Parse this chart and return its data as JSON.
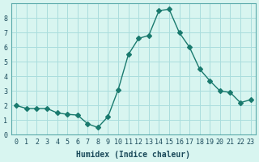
{
  "x": [
    0,
    1,
    2,
    3,
    4,
    5,
    6,
    7,
    8,
    9,
    10,
    11,
    12,
    13,
    14,
    15,
    16,
    17,
    18,
    19,
    20,
    21,
    22,
    23
  ],
  "y": [
    2.0,
    1.8,
    1.8,
    1.8,
    1.5,
    1.4,
    1.35,
    0.75,
    0.5,
    1.25,
    3.1,
    5.5,
    6.6,
    6.8,
    8.5,
    8.6,
    7.0,
    6.0,
    4.5,
    3.7,
    3.0,
    2.9,
    2.2,
    2.4
  ],
  "line_color": "#1a7a6e",
  "marker": "D",
  "marker_size": 3,
  "bg_color": "#d8f5f0",
  "grid_color": "#aadddd",
  "xlabel": "Humidex (Indice chaleur)",
  "ylabel": "",
  "xlim": [
    -0.5,
    23.5
  ],
  "ylim": [
    0,
    9
  ],
  "yticks": [
    0,
    1,
    2,
    3,
    4,
    5,
    6,
    7,
    8
  ],
  "xticks": [
    0,
    1,
    2,
    3,
    4,
    5,
    6,
    7,
    8,
    9,
    10,
    11,
    12,
    13,
    14,
    15,
    16,
    17,
    18,
    19,
    20,
    21,
    22,
    23
  ],
  "tick_fontsize": 6,
  "xlabel_fontsize": 7,
  "tick_color": "#1a4a5a",
  "spine_color": "#5aaaaa"
}
